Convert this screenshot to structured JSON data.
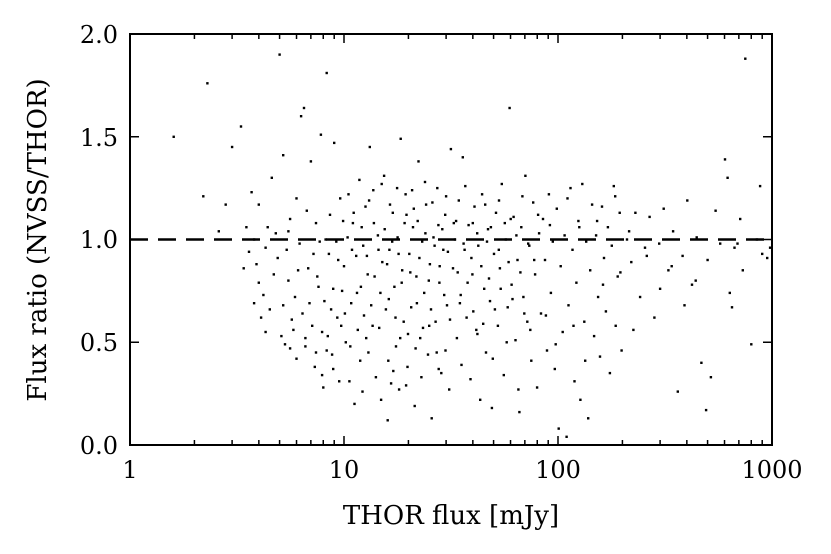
{
  "chart_data": {
    "type": "scatter",
    "xlabel": "THOR flux [mJy]",
    "ylabel": "Flux ratio (NVSS/THOR)",
    "xscale": "log",
    "xlim": [
      1,
      1000
    ],
    "ylim": [
      0.0,
      2.0
    ],
    "x_ticks": [
      "1",
      "10",
      "100",
      "1000"
    ],
    "y_ticks": [
      "0.0",
      "0.5",
      "1.0",
      "1.5",
      "2.0"
    ],
    "grid": false,
    "reference_line": {
      "y": 1.0,
      "style": "dashed"
    },
    "marker_color": "#000000",
    "points": [
      [
        1.6,
        1.5
      ],
      [
        2.2,
        1.21
      ],
      [
        2.3,
        1.76
      ],
      [
        2.6,
        1.04
      ],
      [
        2.8,
        1.17
      ],
      [
        3.0,
        1.45
      ],
      [
        3.3,
        1.55
      ],
      [
        3.4,
        0.86
      ],
      [
        3.5,
        1.06
      ],
      [
        3.6,
        0.94
      ],
      [
        3.7,
        1.23
      ],
      [
        3.8,
        1.0
      ],
      [
        3.9,
        0.88
      ],
      [
        4.0,
        1.17
      ],
      [
        4.1,
        0.62
      ],
      [
        4.2,
        0.73
      ],
      [
        4.3,
        0.55
      ],
      [
        4.4,
        1.06
      ],
      [
        4.5,
        0.66
      ],
      [
        4.6,
        1.3
      ],
      [
        4.8,
        1.03
      ],
      [
        4.9,
        0.91
      ],
      [
        5.0,
        1.9
      ],
      [
        5.1,
        0.53
      ],
      [
        5.2,
        1.41
      ],
      [
        5.3,
        0.49
      ],
      [
        5.4,
        0.95
      ],
      [
        5.5,
        0.8
      ],
      [
        5.6,
        1.1
      ],
      [
        5.8,
        0.56
      ],
      [
        5.9,
        0.72
      ],
      [
        6.0,
        1.2
      ],
      [
        6.2,
        0.98
      ],
      [
        6.3,
        1.6
      ],
      [
        6.4,
        0.64
      ],
      [
        6.5,
        1.64
      ],
      [
        6.6,
        0.48
      ],
      [
        6.8,
        0.86
      ],
      [
        7.0,
        1.38
      ],
      [
        7.1,
        0.58
      ],
      [
        7.3,
        0.38
      ],
      [
        7.4,
        1.08
      ],
      [
        7.5,
        0.82
      ],
      [
        7.7,
        0.99
      ],
      [
        7.8,
        1.51
      ],
      [
        7.9,
        0.34
      ],
      [
        8.0,
        0.28
      ],
      [
        8.1,
        0.7
      ],
      [
        8.3,
        1.81
      ],
      [
        8.4,
        0.53
      ],
      [
        8.5,
        0.93
      ],
      [
        8.6,
        1.12
      ],
      [
        8.8,
        0.44
      ],
      [
        8.9,
        0.76
      ],
      [
        9.0,
        1.47
      ],
      [
        9.2,
        0.99
      ],
      [
        9.3,
        0.62
      ],
      [
        9.5,
        0.31
      ],
      [
        9.6,
        1.2
      ],
      [
        9.8,
        0.75
      ],
      [
        10.0,
        0.87
      ],
      [
        10.2,
        0.5
      ],
      [
        10.4,
        1.01
      ],
      [
        10.6,
        0.31
      ],
      [
        10.8,
        0.69
      ],
      [
        11.0,
        1.08
      ],
      [
        11.2,
        0.2
      ],
      [
        11.4,
        0.92
      ],
      [
        11.6,
        0.56
      ],
      [
        11.8,
        1.29
      ],
      [
        12.0,
        0.77
      ],
      [
        12.2,
        0.26
      ],
      [
        12.4,
        0.63
      ],
      [
        12.6,
        1.16
      ],
      [
        12.8,
        0.92
      ],
      [
        13.0,
        0.45
      ],
      [
        13.2,
        1.45
      ],
      [
        13.4,
        0.68
      ],
      [
        13.7,
        1.24
      ],
      [
        13.9,
        0.82
      ],
      [
        14.1,
        0.33
      ],
      [
        14.4,
        1.02
      ],
      [
        14.6,
        0.57
      ],
      [
        14.9,
        0.22
      ],
      [
        15.1,
        0.89
      ],
      [
        15.4,
        1.31
      ],
      [
        15.7,
        0.66
      ],
      [
        16.0,
        0.12
      ],
      [
        16.3,
        0.95
      ],
      [
        16.6,
        0.3
      ],
      [
        16.9,
        1.13
      ],
      [
        17.2,
        0.77
      ],
      [
        17.5,
        0.48
      ],
      [
        17.8,
        1.01
      ],
      [
        18.1,
        0.27
      ],
      [
        18.4,
        1.49
      ],
      [
        18.7,
        0.85
      ],
      [
        19.0,
        0.6
      ],
      [
        19.4,
        1.22
      ],
      [
        19.8,
        0.38
      ],
      [
        20.2,
        0.93
      ],
      [
        20.6,
        0.67
      ],
      [
        21.0,
        1.06
      ],
      [
        21.4,
        0.19
      ],
      [
        21.8,
        0.82
      ],
      [
        22.3,
        1.38
      ],
      [
        22.7,
        0.52
      ],
      [
        23.2,
        0.99
      ],
      [
        23.7,
        0.74
      ],
      [
        24.2,
        1.17
      ],
      [
        24.7,
        0.44
      ],
      [
        25.2,
        0.88
      ],
      [
        25.7,
        0.13
      ],
      [
        26.2,
        1.01
      ],
      [
        26.8,
        0.6
      ],
      [
        27.3,
        1.25
      ],
      [
        27.9,
        0.79
      ],
      [
        28.5,
        0.35
      ],
      [
        29.1,
        0.95
      ],
      [
        29.7,
        1.12
      ],
      [
        30.3,
        0.68
      ],
      [
        31.0,
        0.27
      ],
      [
        31.6,
        1.44
      ],
      [
        32.3,
        0.86
      ],
      [
        33.0,
        1.0
      ],
      [
        33.7,
        0.52
      ],
      [
        34.4,
        1.19
      ],
      [
        35.1,
        0.73
      ],
      [
        35.9,
        1.4
      ],
      [
        36.6,
        0.95
      ],
      [
        37.4,
        0.62
      ],
      [
        38.2,
        1.07
      ],
      [
        39.0,
        0.32
      ],
      [
        39.8,
        0.83
      ],
      [
        40.7,
        1.16
      ],
      [
        41.5,
        0.56
      ],
      [
        42.4,
        0.97
      ],
      [
        43.3,
        0.22
      ],
      [
        44.2,
        1.22
      ],
      [
        45.2,
        0.76
      ],
      [
        46.1,
        0.45
      ],
      [
        47.1,
        1.05
      ],
      [
        48.1,
        0.7
      ],
      [
        49.1,
        0.18
      ],
      [
        50.2,
        0.93
      ],
      [
        51.3,
        1.13
      ],
      [
        52.4,
        0.58
      ],
      [
        53.5,
        0.86
      ],
      [
        54.6,
        1.27
      ],
      [
        55.8,
        0.34
      ],
      [
        57.0,
        1.0
      ],
      [
        58.2,
        0.67
      ],
      [
        59.4,
        1.64
      ],
      [
        60.7,
        0.78
      ],
      [
        62.0,
        1.11
      ],
      [
        63.3,
        0.51
      ],
      [
        64.7,
        0.9
      ],
      [
        66.0,
        0.16
      ],
      [
        67.4,
        1.06
      ],
      [
        68.9,
        0.72
      ],
      [
        70.4,
        1.31
      ],
      [
        71.9,
        0.6
      ],
      [
        73.4,
        0.97
      ],
      [
        75.0,
        0.41
      ],
      [
        76.6,
        1.18
      ],
      [
        78.2,
        0.83
      ],
      [
        79.9,
        0.28
      ],
      [
        81.6,
        1.03
      ],
      [
        83.3,
        0.64
      ],
      [
        85.1,
        1.1
      ],
      [
        86.9,
        0.9
      ],
      [
        88.8,
        0.46
      ],
      [
        90.7,
        1.22
      ],
      [
        92.6,
        0.74
      ],
      [
        94.6,
        0.99
      ],
      [
        96.6,
        0.37
      ],
      [
        98.7,
        1.15
      ],
      [
        100.8,
        0.08
      ],
      [
        103.0,
        0.87
      ],
      [
        105.2,
        0.55
      ],
      [
        107.4,
        1.02
      ],
      [
        109.7,
        0.04
      ],
      [
        112.0,
        0.68
      ],
      [
        114.4,
        1.25
      ],
      [
        116.9,
        0.95
      ],
      [
        119.4,
        0.31
      ],
      [
        121.9,
        0.79
      ],
      [
        124.5,
        1.09
      ],
      [
        127.2,
        0.22
      ],
      [
        129.9,
        1.27
      ],
      [
        132.7,
        0.6
      ],
      [
        135.5,
        0.99
      ],
      [
        138.4,
        0.13
      ],
      [
        141.4,
        0.85
      ],
      [
        144.4,
        1.17
      ],
      [
        147.5,
        0.53
      ],
      [
        150.7,
        1.02
      ],
      [
        153.9,
        0.72
      ],
      [
        157.2,
        0.43
      ],
      [
        160.5,
        1.16
      ],
      [
        164.0,
        0.91
      ],
      [
        167.5,
        0.65
      ],
      [
        171.0,
        1.06
      ],
      [
        174.7,
        0.35
      ],
      [
        178.4,
        0.97
      ],
      [
        182.2,
        1.26
      ],
      [
        186.1,
        0.58
      ],
      [
        190.1,
        0.82
      ],
      [
        194.2,
        1.13
      ],
      [
        198.3,
        0.46
      ],
      [
        210.0,
        1.0
      ],
      [
        220.0,
        0.89
      ],
      [
        230.0,
        1.13
      ],
      [
        242.0,
        0.72
      ],
      [
        255.0,
        0.96
      ],
      [
        268.0,
        1.11
      ],
      [
        282.0,
        0.62
      ],
      [
        297.0,
        0.98
      ],
      [
        312.0,
        1.15
      ],
      [
        328.0,
        0.85
      ],
      [
        345.0,
        1.04
      ],
      [
        363.0,
        0.26
      ],
      [
        382.0,
        0.92
      ],
      [
        402.0,
        1.19
      ],
      [
        423.0,
        0.78
      ],
      [
        445.0,
        1.01
      ],
      [
        468.0,
        0.4
      ],
      [
        492.0,
        0.17
      ],
      [
        518.0,
        0.33
      ],
      [
        545.0,
        1.14
      ],
      [
        573.0,
        0.98
      ],
      [
        603.0,
        1.39
      ],
      [
        620.0,
        1.3
      ],
      [
        635.0,
        0.74
      ],
      [
        650.0,
        0.67
      ],
      [
        668.0,
        0.96
      ],
      [
        690.0,
        0.98
      ],
      [
        710.0,
        1.1
      ],
      [
        730.0,
        0.85
      ],
      [
        750.0,
        1.88
      ],
      [
        800.0,
        0.49
      ],
      [
        850.0,
        1.0
      ],
      [
        880.0,
        1.26
      ],
      [
        900.0,
        0.93
      ],
      [
        950.0,
        0.91
      ],
      [
        980.0,
        0.96
      ],
      [
        14.5,
        0.95
      ],
      [
        14.8,
        0.74
      ],
      [
        15.5,
        1.05
      ],
      [
        15.9,
        0.88
      ],
      [
        16.2,
        0.71
      ],
      [
        16.8,
        0.99
      ],
      [
        17.4,
        0.62
      ],
      [
        18.0,
        0.93
      ],
      [
        18.6,
        0.79
      ],
      [
        19.2,
        1.08
      ],
      [
        19.9,
        0.54
      ],
      [
        20.4,
        0.84
      ],
      [
        21.2,
        1.15
      ],
      [
        21.9,
        0.69
      ],
      [
        22.5,
        0.91
      ],
      [
        23.4,
        0.57
      ],
      [
        24.0,
        1.03
      ],
      [
        24.9,
        0.8
      ],
      [
        25.5,
        0.66
      ],
      [
        26.5,
        0.97
      ],
      [
        27.1,
        0.45
      ],
      [
        28.0,
        0.87
      ],
      [
        28.8,
        1.05
      ],
      [
        29.4,
        0.73
      ],
      [
        30.6,
        0.94
      ],
      [
        31.3,
        0.61
      ],
      [
        32.6,
        1.08
      ],
      [
        34.0,
        0.84
      ],
      [
        34.8,
        0.69
      ],
      [
        36.2,
        0.98
      ],
      [
        37.8,
        0.79
      ],
      [
        39.4,
        0.91
      ],
      [
        40.2,
        0.65
      ],
      [
        41.9,
        1.03
      ],
      [
        43.8,
        0.87
      ],
      [
        44.7,
        0.59
      ],
      [
        46.6,
        0.99
      ],
      [
        47.6,
        0.81
      ],
      [
        48.6,
        1.06
      ],
      [
        50.7,
        0.66
      ],
      [
        52.9,
        0.95
      ],
      [
        54.0,
        0.76
      ],
      [
        56.4,
        1.08
      ],
      [
        58.8,
        0.89
      ],
      [
        61.3,
        0.71
      ],
      [
        63.9,
        1.02
      ],
      [
        66.7,
        0.84
      ],
      [
        69.6,
        0.64
      ],
      [
        72.6,
        0.98
      ],
      [
        77.4,
        0.9
      ],
      [
        11.5,
        0.74
      ],
      [
        12.3,
        0.97
      ],
      [
        12.9,
        0.83
      ],
      [
        13.6,
        0.58
      ],
      [
        10.9,
        0.95
      ],
      [
        10.1,
        0.64
      ],
      [
        9.4,
        0.9
      ],
      [
        8.7,
        0.66
      ],
      [
        8.2,
        1.0
      ],
      [
        7.6,
        0.77
      ],
      [
        7.2,
        0.93
      ],
      [
        6.9,
        0.69
      ],
      [
        6.7,
        1.14
      ],
      [
        6.1,
        0.85
      ],
      [
        5.7,
        0.61
      ],
      [
        5.5,
        1.04
      ],
      [
        4.7,
        0.83
      ],
      [
        4.3,
        0.96
      ],
      [
        4.0,
        0.79
      ],
      [
        3.8,
        0.69
      ],
      [
        9.9,
        1.09
      ],
      [
        10.5,
        1.22
      ],
      [
        11.1,
        1.13
      ],
      [
        12.1,
        1.06
      ],
      [
        13.1,
        1.19
      ],
      [
        13.8,
        1.08
      ],
      [
        15.0,
        1.27
      ],
      [
        16.4,
        1.17
      ],
      [
        17.7,
        1.25
      ],
      [
        19.6,
        1.12
      ],
      [
        20.8,
        1.24
      ],
      [
        22.1,
        1.09
      ],
      [
        23.9,
        1.28
      ],
      [
        25.9,
        1.18
      ],
      [
        27.6,
        1.07
      ],
      [
        30.0,
        1.21
      ],
      [
        33.4,
        1.09
      ],
      [
        36.9,
        1.26
      ],
      [
        40.0,
        1.08
      ],
      [
        45.7,
        1.17
      ],
      [
        53.0,
        1.19
      ],
      [
        60.1,
        1.1
      ],
      [
        68.2,
        1.21
      ],
      [
        80.7,
        1.12
      ],
      [
        91.7,
        1.07
      ],
      [
        110.8,
        1.2
      ],
      [
        125.7,
        1.06
      ],
      [
        152.3,
        1.09
      ],
      [
        185.0,
        1.21
      ],
      [
        215.0,
        1.04
      ],
      [
        29.8,
        0.46
      ],
      [
        35.4,
        0.39
      ],
      [
        42.0,
        0.54
      ],
      [
        49.6,
        0.42
      ],
      [
        57.6,
        0.5
      ],
      [
        65.3,
        0.27
      ],
      [
        74.2,
        0.56
      ],
      [
        87.8,
        0.63
      ],
      [
        97.6,
        0.49
      ],
      [
        118.1,
        0.58
      ],
      [
        134.0,
        0.41
      ],
      [
        162.2,
        0.78
      ],
      [
        195.7,
        0.84
      ],
      [
        225.0,
        0.56
      ],
      [
        260.0,
        0.92
      ],
      [
        300.0,
        0.76
      ],
      [
        340.0,
        0.87
      ],
      [
        390.0,
        0.68
      ],
      [
        440.0,
        0.8
      ],
      [
        500.0,
        0.9
      ],
      [
        16.1,
        0.41
      ],
      [
        17.0,
        0.36
      ],
      [
        18.3,
        0.52
      ],
      [
        19.5,
        0.29
      ],
      [
        21.6,
        0.47
      ],
      [
        23.0,
        0.33
      ],
      [
        25.0,
        0.58
      ],
      [
        27.7,
        0.37
      ],
      [
        12.7,
        0.52
      ],
      [
        11.9,
        0.41
      ],
      [
        10.7,
        0.48
      ],
      [
        9.7,
        0.58
      ],
      [
        8.9,
        0.37
      ],
      [
        8.3,
        0.46
      ],
      [
        7.9,
        0.55
      ],
      [
        7.4,
        0.45
      ],
      [
        6.6,
        0.52
      ],
      [
        6.0,
        0.42
      ],
      [
        5.6,
        0.47
      ],
      [
        5.2,
        0.68
      ]
    ]
  }
}
